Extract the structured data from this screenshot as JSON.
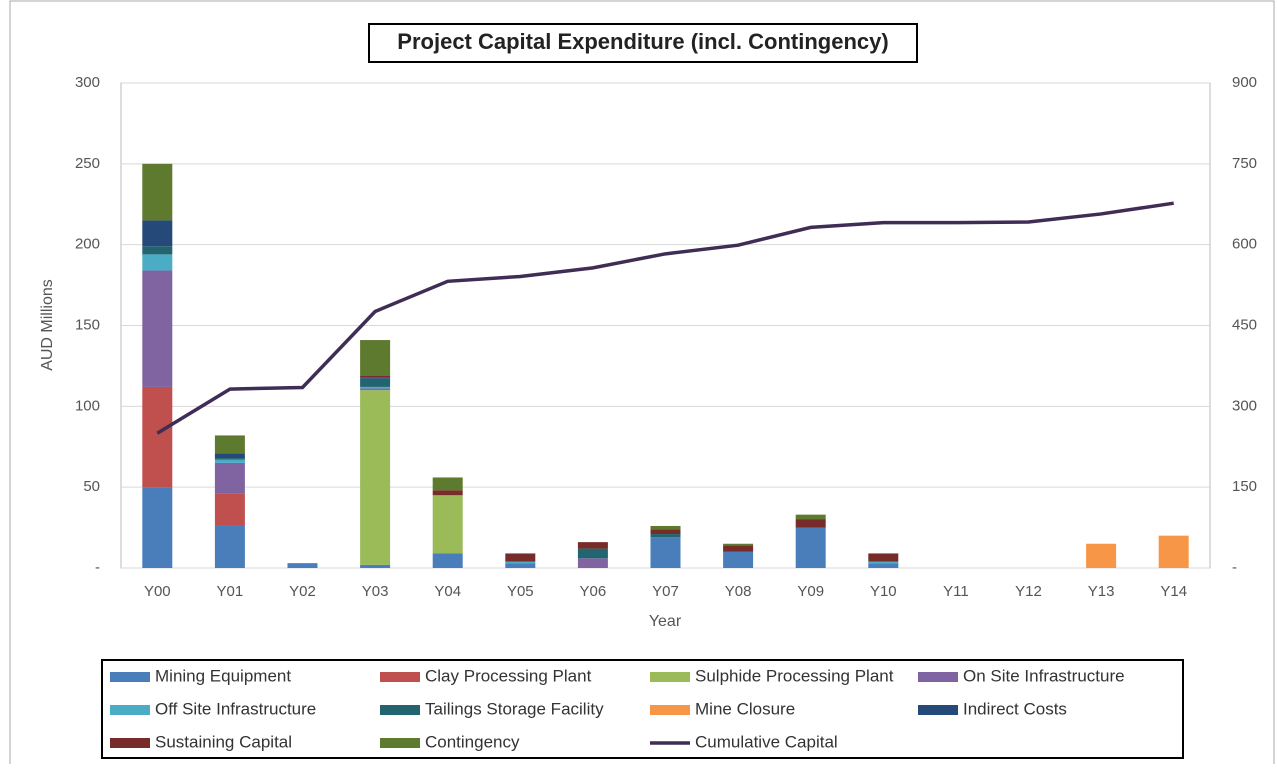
{
  "chart_data": {
    "type": "bar",
    "stacked": true,
    "title": "Project Capital Expenditure (incl. Contingency)",
    "xlabel": "Year",
    "ylabel": "AUD Millions",
    "categories": [
      "Y00",
      "Y01",
      "Y02",
      "Y03",
      "Y04",
      "Y05",
      "Y06",
      "Y07",
      "Y08",
      "Y09",
      "Y10",
      "Y11",
      "Y12",
      "Y13",
      "Y14"
    ],
    "ylim": [
      0,
      300
    ],
    "yticks": [
      {
        "value": 0,
        "label": "-"
      },
      50,
      100,
      150,
      200,
      250,
      300
    ],
    "y2lim": [
      0,
      900
    ],
    "y2ticks": [
      {
        "value": 0,
        "label": "-"
      },
      150,
      300,
      450,
      600,
      750,
      900
    ],
    "grid": true,
    "legend": "bottom",
    "series": [
      {
        "name": "Mining Equipment",
        "color": "#4a7ebb",
        "values": [
          50,
          26,
          3,
          2,
          9,
          3,
          0,
          19,
          10,
          25,
          3,
          0,
          0,
          0,
          0
        ]
      },
      {
        "name": "Clay Processing Plant",
        "color": "#c0504d",
        "values": [
          62,
          20,
          0,
          0,
          0,
          0,
          0,
          0,
          0,
          0,
          0,
          0,
          0,
          0,
          0
        ]
      },
      {
        "name": "Sulphide Processing Plant",
        "color": "#9bbb59",
        "values": [
          0,
          0,
          0,
          108,
          36,
          0,
          0,
          0,
          0,
          0,
          0,
          0,
          0,
          0,
          0
        ]
      },
      {
        "name": "On Site Infrastructure",
        "color": "#8064a2",
        "values": [
          72,
          19,
          0,
          1,
          0,
          0,
          6,
          0,
          0,
          0,
          0,
          0,
          0,
          0,
          0
        ]
      },
      {
        "name": "Off Site Infrastructure",
        "color": "#4bacc6",
        "values": [
          10,
          2,
          0,
          1,
          0,
          1,
          0,
          0,
          0,
          0,
          1,
          0,
          0,
          0,
          0
        ]
      },
      {
        "name": "Tailings Storage Facility",
        "color": "#22646f",
        "values": [
          5,
          1,
          0,
          5,
          0,
          0,
          6,
          2,
          0,
          0,
          0,
          0,
          0,
          0,
          0
        ]
      },
      {
        "name": "Mine Closure",
        "color": "#f79646",
        "values": [
          0,
          0,
          0,
          0,
          0,
          0,
          0,
          0,
          0,
          0,
          0,
          0,
          0,
          15,
          20
        ]
      },
      {
        "name": "Indirect Costs",
        "color": "#254a7a",
        "values": [
          16,
          3,
          0,
          1,
          0,
          0,
          0,
          0,
          0,
          0,
          0,
          0,
          0,
          0,
          0
        ]
      },
      {
        "name": "Sustaining Capital",
        "color": "#772c2a",
        "values": [
          0,
          0,
          0,
          1,
          3,
          5,
          4,
          3,
          4,
          5,
          5,
          0,
          0,
          0,
          0
        ]
      },
      {
        "name": "Contingency",
        "color": "#5e7a2e",
        "values": [
          35,
          11,
          0,
          22,
          8,
          0,
          0,
          2,
          1,
          3,
          0,
          0,
          0,
          0,
          0
        ]
      },
      {
        "name": "Cumulative Capital",
        "color": "#3f2d55",
        "type": "line",
        "axis": "y2",
        "values": [
          250,
          332,
          335,
          476,
          532,
          541,
          557,
          583,
          599,
          632,
          641,
          641,
          642,
          657,
          677
        ]
      }
    ]
  }
}
